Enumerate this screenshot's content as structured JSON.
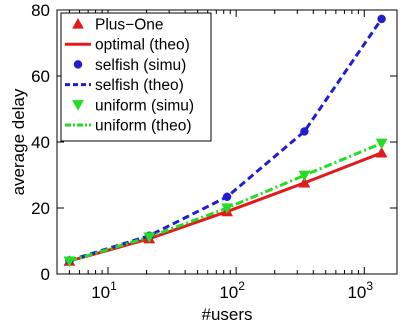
{
  "chart_data": {
    "type": "line",
    "xscale": "log",
    "xlabel": "#users",
    "ylabel": "average delay",
    "xlim": [
      4,
      1800
    ],
    "ylim": [
      0,
      80
    ],
    "x_ticks": [
      {
        "value": 10,
        "base": "10",
        "exp": "1"
      },
      {
        "value": 100,
        "base": "10",
        "exp": "2"
      },
      {
        "value": 1000,
        "base": "10",
        "exp": "3"
      }
    ],
    "y_ticks": [
      {
        "value": 0,
        "label": "0"
      },
      {
        "value": 20,
        "label": "20"
      },
      {
        "value": 40,
        "label": "40"
      },
      {
        "value": 60,
        "label": "60"
      },
      {
        "value": 80,
        "label": "80"
      }
    ],
    "grid": false,
    "legend_position": "top-left",
    "series": [
      {
        "name": "Plus−One",
        "style": "markers",
        "marker": "triangle-up",
        "color": "#e31a1c",
        "x": [
          5,
          21,
          85,
          341,
          1365
        ],
        "y": [
          3.9,
          10.7,
          18.9,
          27.6,
          36.7
        ]
      },
      {
        "name": "optimal (theo)",
        "style": "solid",
        "marker": "none",
        "color": "#e31a1c",
        "x": [
          5,
          21,
          85,
          341,
          1365
        ],
        "y": [
          3.9,
          10.7,
          18.9,
          27.6,
          36.7
        ]
      },
      {
        "name": "selfish (simu)",
        "style": "markers",
        "marker": "circle",
        "color": "#1f1fd0",
        "x": [
          5,
          21,
          85,
          341,
          1365
        ],
        "y": [
          4.1,
          11.6,
          23.4,
          43.2,
          77.3
        ]
      },
      {
        "name": "selfish (theo)",
        "style": "dashed",
        "marker": "none",
        "color": "#1f1fd0",
        "x": [
          5,
          21,
          85,
          341,
          1365
        ],
        "y": [
          4.1,
          11.6,
          23.4,
          43.2,
          77.3
        ]
      },
      {
        "name": "uniform (simu)",
        "style": "markers",
        "marker": "triangle-down",
        "color": "#22dd22",
        "x": [
          5,
          21,
          85,
          341,
          1365
        ],
        "y": [
          3.9,
          11.2,
          20.0,
          29.9,
          39.6
        ]
      },
      {
        "name": "uniform (theo)",
        "style": "dashdot",
        "marker": "none",
        "color": "#22dd22",
        "x": [
          5,
          21,
          85,
          341,
          1365
        ],
        "y": [
          3.9,
          11.2,
          20.0,
          29.9,
          39.6
        ]
      }
    ]
  }
}
